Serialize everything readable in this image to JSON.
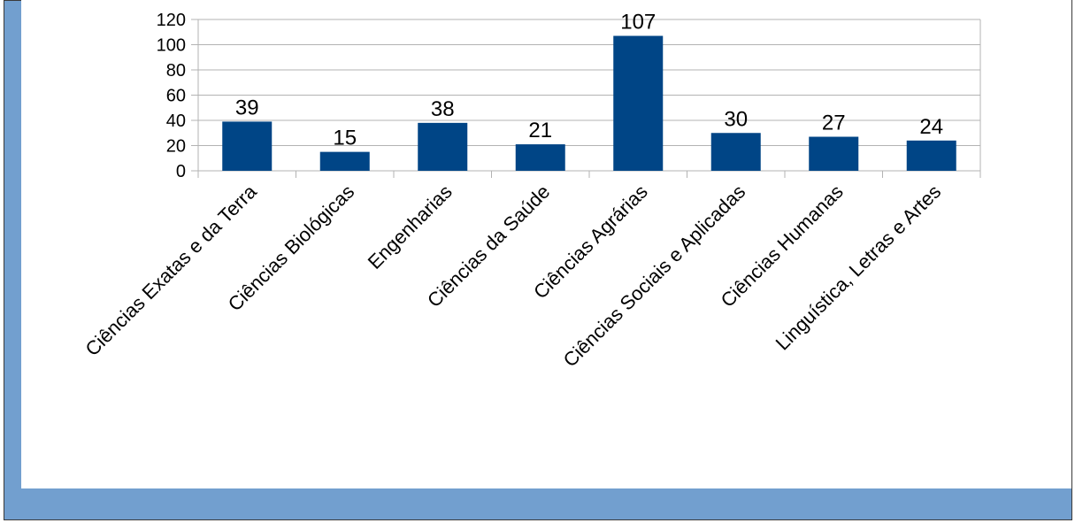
{
  "chart_data": {
    "type": "bar",
    "categories": [
      "Ciências Exatas e da Terra",
      "Ciências Biológicas",
      "Engenharias",
      "Ciências da Saúde",
      "Ciências Agrárias",
      "Ciências Sociais e Aplicadas",
      "Ciências Humanas",
      "Linguística, Letras e Artes"
    ],
    "values": [
      39,
      15,
      38,
      21,
      107,
      30,
      27,
      24
    ],
    "title": "",
    "xlabel": "",
    "ylabel": "",
    "ylim": [
      0,
      120
    ],
    "yticks": [
      "0",
      "20",
      "40",
      "60",
      "80",
      "100",
      "120"
    ],
    "grid": true,
    "bar_color": "#004586"
  },
  "colors": {
    "frame": "#729fcf",
    "panel": "#ffffff",
    "gridline": "#b3b3b3"
  }
}
